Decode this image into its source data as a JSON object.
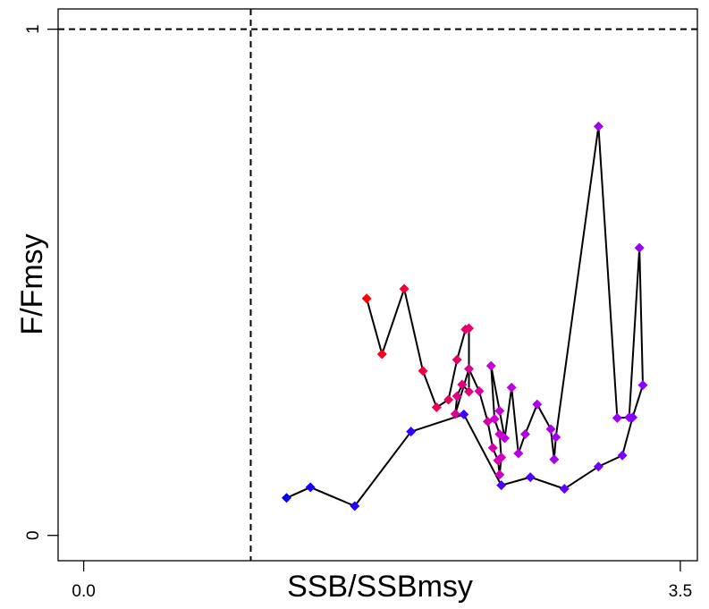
{
  "chart_data": {
    "type": "scatter",
    "xlabel": "SSB/SSBmsy",
    "ylabel": "F/Fmsy",
    "xlim": [
      -0.15,
      3.6
    ],
    "ylim": [
      -0.05,
      1.04
    ],
    "x_ticks": [
      {
        "value": 0,
        "label": "0.0"
      },
      {
        "value": 3.5,
        "label": "3.5"
      }
    ],
    "y_ticks": [
      {
        "value": 0,
        "label": "0"
      },
      {
        "value": 1,
        "label": "1"
      }
    ],
    "reference_lines": {
      "x": 0.98,
      "y": 1.0,
      "style": "dashed"
    },
    "grid": false,
    "legend": "none",
    "line_color": "#000000",
    "color_gradient": "red (first year) → magenta → purple → blue (last year)",
    "points": [
      {
        "x": 1.66,
        "y": 0.468,
        "color": "#ff0000"
      },
      {
        "x": 1.75,
        "y": 0.358,
        "color": "#f8001e"
      },
      {
        "x": 1.88,
        "y": 0.487,
        "color": "#f40030"
      },
      {
        "x": 1.99,
        "y": 0.325,
        "color": "#f0003e"
      },
      {
        "x": 2.07,
        "y": 0.253,
        "color": "#ec004c"
      },
      {
        "x": 2.14,
        "y": 0.268,
        "color": "#ea0056"
      },
      {
        "x": 2.19,
        "y": 0.347,
        "color": "#e80060"
      },
      {
        "x": 2.24,
        "y": 0.407,
        "color": "#e60068"
      },
      {
        "x": 2.26,
        "y": 0.409,
        "color": "#e4006e"
      },
      {
        "x": 2.26,
        "y": 0.284,
        "color": "#e2007a"
      },
      {
        "x": 2.22,
        "y": 0.298,
        "color": "#e00080"
      },
      {
        "x": 2.19,
        "y": 0.275,
        "color": "#de0088"
      },
      {
        "x": 2.18,
        "y": 0.24,
        "color": "#dc0090"
      },
      {
        "x": 2.26,
        "y": 0.329,
        "color": "#da0098"
      },
      {
        "x": 2.32,
        "y": 0.285,
        "color": "#d800a0"
      },
      {
        "x": 2.37,
        "y": 0.225,
        "color": "#d600a8"
      },
      {
        "x": 2.4,
        "y": 0.173,
        "color": "#d400b0"
      },
      {
        "x": 2.43,
        "y": 0.148,
        "color": "#d200b6"
      },
      {
        "x": 2.44,
        "y": 0.12,
        "color": "#d000bc"
      },
      {
        "x": 2.45,
        "y": 0.154,
        "color": "#ce00c2"
      },
      {
        "x": 2.44,
        "y": 0.2,
        "color": "#cc00c8"
      },
      {
        "x": 2.41,
        "y": 0.23,
        "color": "#cc00ce"
      },
      {
        "x": 2.39,
        "y": 0.335,
        "color": "#c800d2"
      },
      {
        "x": 2.44,
        "y": 0.246,
        "color": "#c400d6"
      },
      {
        "x": 2.47,
        "y": 0.192,
        "color": "#c000da"
      },
      {
        "x": 2.51,
        "y": 0.292,
        "color": "#bc00de"
      },
      {
        "x": 2.55,
        "y": 0.162,
        "color": "#b800e2"
      },
      {
        "x": 2.59,
        "y": 0.2,
        "color": "#b400e6"
      },
      {
        "x": 2.66,
        "y": 0.259,
        "color": "#b000ea"
      },
      {
        "x": 2.74,
        "y": 0.21,
        "color": "#ac00ee"
      },
      {
        "x": 2.76,
        "y": 0.15,
        "color": "#a800f0"
      },
      {
        "x": 2.77,
        "y": 0.194,
        "color": "#a400f2"
      },
      {
        "x": 3.02,
        "y": 0.808,
        "color": "#a000f4"
      },
      {
        "x": 3.13,
        "y": 0.232,
        "color": "#9c00f6"
      },
      {
        "x": 3.2,
        "y": 0.233,
        "color": "#9800f8"
      },
      {
        "x": 3.26,
        "y": 0.568,
        "color": "#9400fa"
      },
      {
        "x": 3.28,
        "y": 0.297,
        "color": "#8e00fc"
      },
      {
        "x": 3.22,
        "y": 0.233,
        "color": "#8400fe"
      },
      {
        "x": 3.16,
        "y": 0.158,
        "color": "#7a00ff"
      },
      {
        "x": 3.02,
        "y": 0.136,
        "color": "#6e00ff"
      },
      {
        "x": 2.82,
        "y": 0.092,
        "color": "#6000ff"
      },
      {
        "x": 2.62,
        "y": 0.115,
        "color": "#5400ff"
      },
      {
        "x": 2.45,
        "y": 0.099,
        "color": "#4a00ff"
      },
      {
        "x": 2.23,
        "y": 0.239,
        "color": "#3e00ff"
      },
      {
        "x": 1.92,
        "y": 0.205,
        "color": "#3000ff"
      },
      {
        "x": 1.59,
        "y": 0.058,
        "color": "#2400ff"
      },
      {
        "x": 1.33,
        "y": 0.095,
        "color": "#1800ff"
      },
      {
        "x": 1.19,
        "y": 0.074,
        "color": "#0000ff"
      }
    ]
  }
}
